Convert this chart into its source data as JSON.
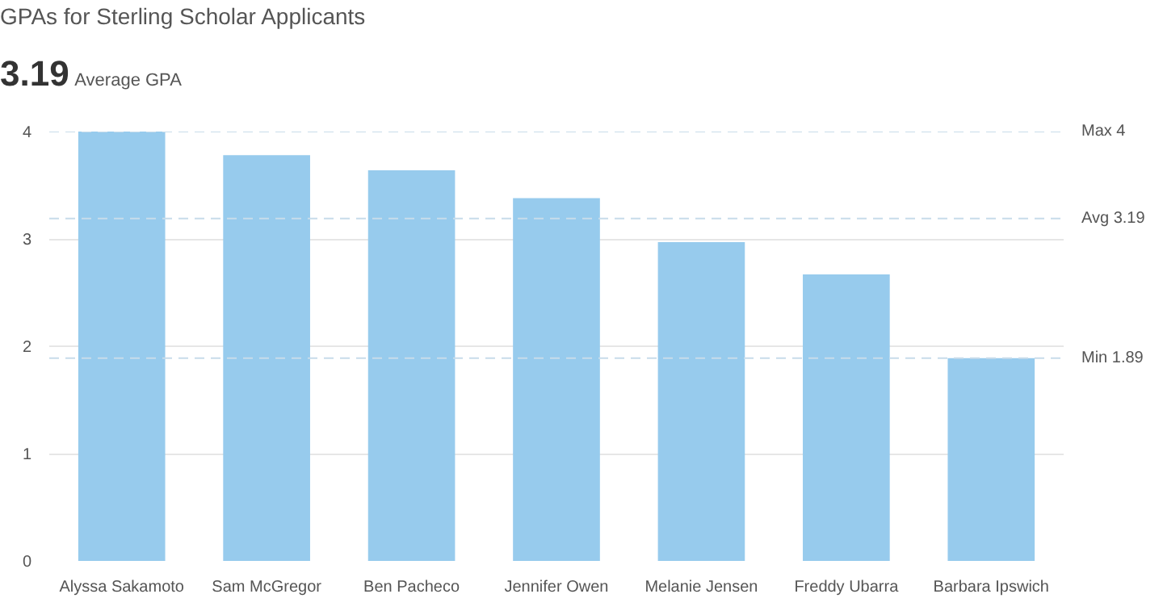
{
  "chart_data": {
    "type": "bar",
    "title": "GPAs for Sterling Scholar Applicants",
    "annotations": [
      "3.19",
      "Average GPA"
    ],
    "categories": [
      "Alyssa Sakamoto",
      "Sam McGregor",
      "Ben Pacheco",
      "Jennifer Owen",
      "Melanie Jensen",
      "Freddy Ubarra",
      "Barbara Ipswich"
    ],
    "values": [
      4.0,
      3.78,
      3.64,
      3.38,
      2.97,
      2.67,
      1.89
    ],
    "color": "#97cbed",
    "ylim": [
      0,
      4
    ],
    "yticks": [
      0,
      1,
      2,
      3,
      4
    ],
    "grid": "y",
    "ref_lines": [
      {
        "axis": "y",
        "value": 4,
        "label": "Max 4",
        "color": "#c8dcea",
        "line_style": "dashed"
      },
      {
        "axis": "y",
        "value": 3.19,
        "label": "Avg 3.19",
        "color": "#c8dcea",
        "line_style": "dashed"
      },
      {
        "axis": "y",
        "value": 1.89,
        "label": "Min 1.89",
        "color": "#c8dcea",
        "line_style": "dashed"
      }
    ]
  }
}
